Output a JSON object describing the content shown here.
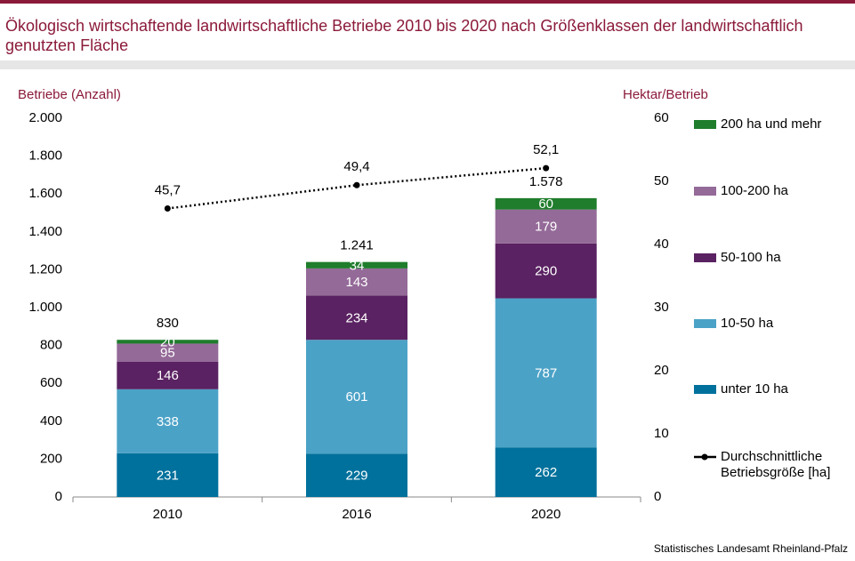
{
  "chart_data": {
    "type": "bar",
    "title": "Ökologisch wirtschaftende landwirtschaftliche Betriebe 2010 bis 2020 nach Größenklassen der landwirtschaftlich genutzten Fläche",
    "ylabel": "Betriebe (Anzahl)",
    "y2label": "Hektar/Betrieb",
    "categories": [
      "2010",
      "2016",
      "2020"
    ],
    "series": [
      {
        "name": "unter 10 ha",
        "color": "#00719c",
        "values": [
          231,
          229,
          262
        ]
      },
      {
        "name": "10-50 ha",
        "color": "#4ba2c7",
        "values": [
          338,
          601,
          787
        ]
      },
      {
        "name": "50-100 ha",
        "color": "#5a2262",
        "values": [
          146,
          234,
          290
        ]
      },
      {
        "name": "100-200 ha",
        "color": "#946a98",
        "values": [
          95,
          143,
          179
        ]
      },
      {
        "name": "200 ha und mehr",
        "color": "#1f7d2c",
        "values": [
          20,
          34,
          60
        ]
      }
    ],
    "totals": {
      "values": [
        830,
        1241,
        1578
      ],
      "value_labels": [
        "830",
        "1.241",
        "1.578"
      ]
    },
    "line": {
      "name": "Durchschnittliche Betriebsgröße [ha]",
      "color": "#000000",
      "axis": "y2",
      "values": [
        45.7,
        49.4,
        52.1
      ],
      "value_labels": [
        "45,7",
        "49,4",
        "52,1"
      ]
    },
    "ylim": [
      0,
      2000
    ],
    "yticks": [
      0,
      200,
      400,
      600,
      800,
      {
        "value": 1000,
        "label": "1.000"
      },
      {
        "value": 1200,
        "label": "1.200"
      },
      {
        "value": 1400,
        "label": "1.400"
      },
      {
        "value": 1600,
        "label": "1.600"
      },
      {
        "value": 1800,
        "label": "1.800"
      },
      {
        "value": 2000,
        "label": "2.000"
      }
    ],
    "y2lim": [
      0,
      60
    ],
    "y2ticks": [
      0,
      10,
      20,
      30,
      40,
      50,
      60
    ],
    "source": "Statistisches Landesamt Rheinland-Pfalz"
  }
}
